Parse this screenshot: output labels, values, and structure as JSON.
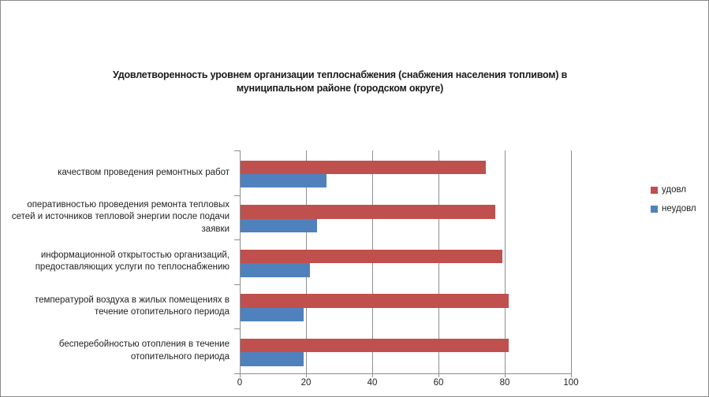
{
  "window": {
    "background_color": "#ffffff",
    "border_color": "#8a8a8a"
  },
  "colors": {
    "gridline": "#8e8e8e",
    "axis": "#8e8e8e",
    "text": "#1f1f1f",
    "title_text": "#1a1a1a"
  },
  "chart_data": {
    "type": "bar",
    "orientation": "horizontal",
    "title": "Удовлетворенность уровнем организации  теплоснабжения (снабжения населения топливом) в муниципальном районе (городском округе)",
    "categories": [
      "качеством проведения  ремонтных работ",
      "оперативностью проведения  ремонта тепловых сетей и источников тепловой энергии после подачи заявки",
      "информационной открытостью организаций, предоставляющих услуги по теплоснабжению",
      "температурой воздуха в жилых помещениях  в течение  отопительного периода",
      "бесперебойностью  отопления в течение отопительного периода"
    ],
    "series": [
      {
        "name": "удовл",
        "color": "#c0504d",
        "values": [
          74,
          77,
          79,
          81,
          81
        ]
      },
      {
        "name": "неудовл",
        "color": "#4f81bd",
        "values": [
          26,
          23,
          21,
          19,
          19
        ]
      }
    ],
    "xlim": [
      0,
      100
    ],
    "x_ticks": [
      0,
      20,
      40,
      60,
      80,
      100
    ],
    "grid": "vertical-major",
    "legend_position": "right"
  }
}
